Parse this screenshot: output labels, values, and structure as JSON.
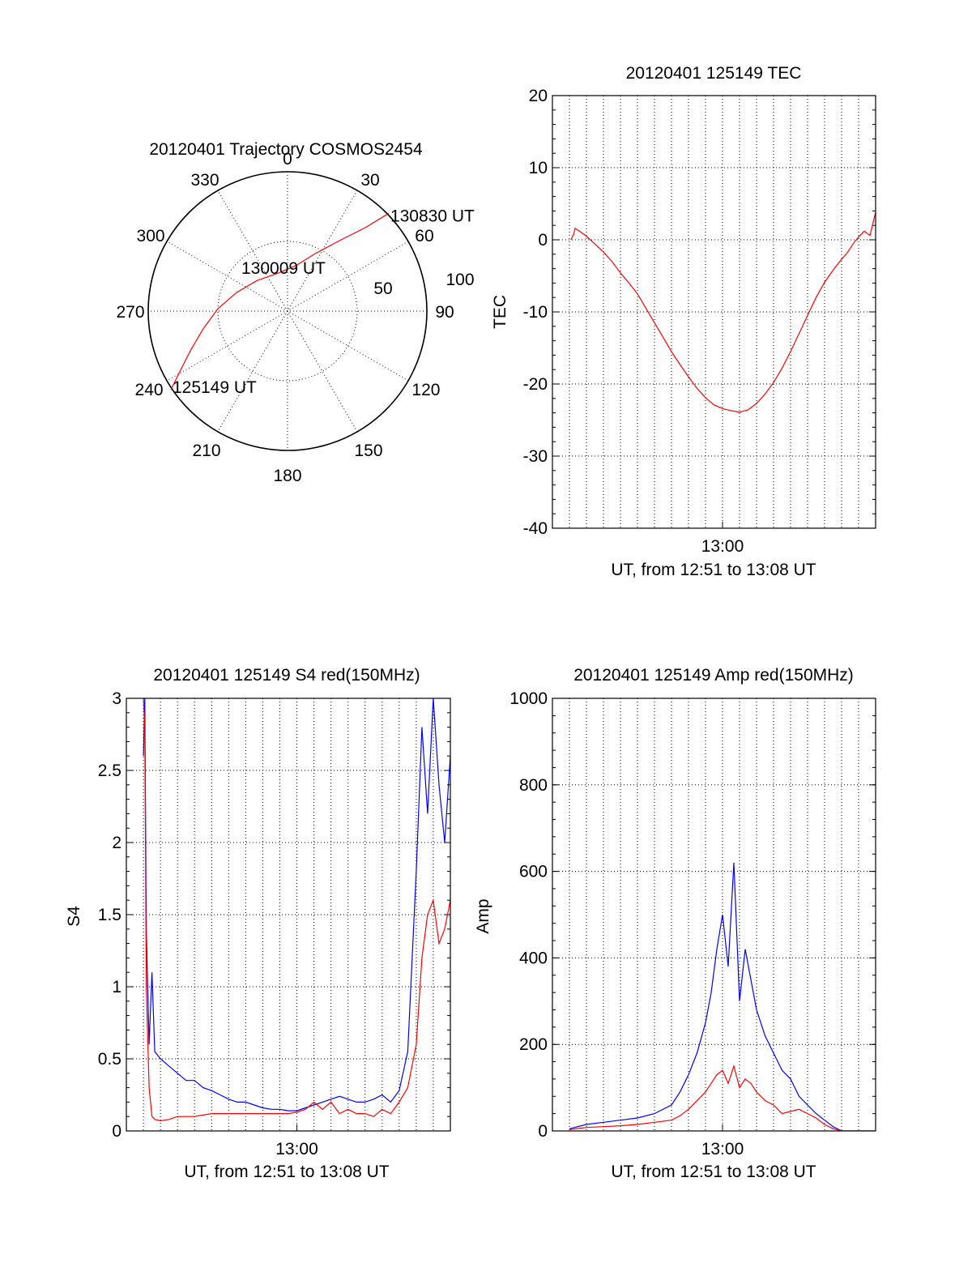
{
  "chart_data": [
    {
      "type": "polar",
      "title": "20120401 Trajectory COSMOS2454",
      "azimuth_labels": [
        "0",
        "30",
        "60",
        "90",
        "120",
        "150",
        "180",
        "210",
        "240",
        "270",
        "300",
        "330"
      ],
      "radial_labels": [
        "50",
        "100"
      ],
      "radial_ticks": [
        50,
        100
      ],
      "grid": true,
      "trajectory_color": "#ff0000",
      "trajectory": [
        {
          "az": 236,
          "r": 101
        },
        {
          "az": 241,
          "r": 88
        },
        {
          "az": 248,
          "r": 75
        },
        {
          "az": 258,
          "r": 62
        },
        {
          "az": 272,
          "r": 50
        },
        {
          "az": 290,
          "r": 39
        },
        {
          "az": 315,
          "r": 31
        },
        {
          "az": 345,
          "r": 28
        },
        {
          "az": 10,
          "r": 33
        },
        {
          "az": 25,
          "r": 45
        },
        {
          "az": 36,
          "r": 62
        },
        {
          "az": 43,
          "r": 82
        },
        {
          "az": 46,
          "r": 101
        }
      ],
      "annotations": [
        {
          "text": "125149 UT",
          "az": 236,
          "r": 101
        },
        {
          "text": "130009 UT",
          "az": 330,
          "r": 28
        },
        {
          "text": "130830 UT",
          "az": 46,
          "r": 101
        }
      ]
    },
    {
      "type": "line",
      "title": "20120401 125149 TEC",
      "xlabel": "UT, from 12:51 to 13:08 UT",
      "ylabel": "TEC",
      "xlim": [
        "12:50:00",
        "13:09:00"
      ],
      "ylim": [
        -40,
        20
      ],
      "yticks": [
        -40,
        -30,
        -20,
        -10,
        0,
        10,
        20
      ],
      "xtick_labels": [
        {
          "t": "13:00:00",
          "label": "13:00"
        }
      ],
      "grid": true,
      "series": [
        {
          "color": "#ff0000",
          "x": [
            "12:51:05",
            "12:51:15",
            "12:51:20",
            "12:51:35",
            "12:52:00",
            "12:52:30",
            "12:53:00",
            "12:53:30",
            "12:54:00",
            "12:54:30",
            "12:55:00",
            "12:55:30",
            "12:56:00",
            "12:56:30",
            "12:57:00",
            "12:57:30",
            "12:58:00",
            "12:58:30",
            "12:59:00",
            "12:59:30",
            "13:00:00",
            "13:00:30",
            "13:01:00",
            "13:01:30",
            "13:02:00",
            "13:02:30",
            "13:03:00",
            "13:03:30",
            "13:04:00",
            "13:04:30",
            "13:05:00",
            "13:05:30",
            "13:06:00",
            "13:06:30",
            "13:07:00",
            "13:07:20",
            "13:07:40",
            "13:08:00",
            "13:08:20",
            "13:08:40",
            "13:09:00"
          ],
          "y": [
            0,
            0.8,
            1.6,
            1.2,
            0.5,
            -0.6,
            -1.7,
            -3.0,
            -4.6,
            -6.0,
            -7.5,
            -9.5,
            -11.5,
            -13.5,
            -15.5,
            -17.3,
            -19.0,
            -20.6,
            -21.9,
            -22.9,
            -23.4,
            -23.7,
            -23.9,
            -23.6,
            -22.7,
            -21.4,
            -19.8,
            -17.8,
            -15.5,
            -13.0,
            -10.5,
            -8.0,
            -5.9,
            -4.2,
            -2.7,
            -1.8,
            -0.6,
            0.4,
            1.2,
            0.6,
            3.8
          ]
        }
      ]
    },
    {
      "type": "line",
      "title": "20120401 125149 S4 red(150MHz)",
      "xlabel": "UT, from 12:51 to 13:08 UT",
      "ylabel": "S4",
      "xlim": [
        "12:50:00",
        "13:09:00"
      ],
      "ylim": [
        0,
        3
      ],
      "yticks": [
        0,
        0.5,
        1,
        1.5,
        2,
        2.5,
        3
      ],
      "ytick_labels": [
        "0",
        "0.5",
        "1",
        "1.5",
        "2",
        "2.5",
        "3"
      ],
      "xtick_labels": [
        {
          "t": "13:00:00",
          "label": "13:00"
        }
      ],
      "grid": true,
      "series": [
        {
          "color": "#0000ff",
          "x": [
            "12:51:00",
            "12:51:05",
            "12:51:10",
            "12:51:20",
            "12:51:30",
            "12:51:40",
            "12:52:00",
            "12:52:30",
            "12:53:00",
            "12:53:30",
            "12:54:00",
            "12:54:30",
            "12:55:00",
            "12:55:30",
            "12:56:00",
            "12:56:30",
            "12:57:00",
            "12:57:30",
            "12:58:00",
            "12:58:30",
            "12:59:00",
            "12:59:30",
            "13:00:00",
            "13:00:30",
            "13:01:00",
            "13:01:30",
            "13:02:00",
            "13:02:30",
            "13:03:00",
            "13:03:30",
            "13:04:00",
            "13:04:30",
            "13:05:00",
            "13:05:30",
            "13:06:00",
            "13:06:30",
            "13:07:00",
            "13:07:20",
            "13:07:40",
            "13:08:00",
            "13:08:20",
            "13:08:40",
            "13:09:00"
          ],
          "y": [
            2.6,
            3.0,
            1.4,
            0.6,
            1.1,
            0.55,
            0.5,
            0.45,
            0.4,
            0.35,
            0.35,
            0.3,
            0.28,
            0.25,
            0.22,
            0.2,
            0.2,
            0.18,
            0.16,
            0.15,
            0.15,
            0.14,
            0.14,
            0.16,
            0.18,
            0.2,
            0.22,
            0.24,
            0.22,
            0.2,
            0.2,
            0.22,
            0.25,
            0.2,
            0.28,
            0.55,
            1.8,
            2.8,
            2.2,
            3.0,
            2.4,
            2.0,
            2.6
          ]
        },
        {
          "color": "#ff0000",
          "x": [
            "12:51:00",
            "12:51:05",
            "12:51:10",
            "12:51:20",
            "12:51:30",
            "12:51:40",
            "12:52:00",
            "12:52:30",
            "12:53:00",
            "12:53:30",
            "12:54:00",
            "12:54:30",
            "12:55:00",
            "12:55:30",
            "12:56:00",
            "12:56:30",
            "12:57:00",
            "12:57:30",
            "12:58:00",
            "12:58:30",
            "12:59:00",
            "12:59:30",
            "13:00:00",
            "13:00:30",
            "13:01:00",
            "13:01:30",
            "13:02:00",
            "13:02:30",
            "13:03:00",
            "13:03:30",
            "13:04:00",
            "13:04:30",
            "13:05:00",
            "13:05:30",
            "13:06:00",
            "13:06:30",
            "13:07:00",
            "13:07:20",
            "13:07:40",
            "13:08:00",
            "13:08:20",
            "13:08:40",
            "13:09:00"
          ],
          "y": [
            3.0,
            2.8,
            1.0,
            0.3,
            0.1,
            0.08,
            0.07,
            0.08,
            0.1,
            0.1,
            0.1,
            0.11,
            0.12,
            0.12,
            0.12,
            0.12,
            0.12,
            0.12,
            0.12,
            0.12,
            0.12,
            0.12,
            0.13,
            0.15,
            0.2,
            0.15,
            0.2,
            0.12,
            0.15,
            0.12,
            0.12,
            0.1,
            0.15,
            0.12,
            0.2,
            0.3,
            0.6,
            1.2,
            1.5,
            1.6,
            1.3,
            1.4,
            1.6
          ]
        }
      ]
    },
    {
      "type": "line",
      "title": "20120401 125149 Amp red(150MHz)",
      "xlabel": "UT, from 12:51 to 13:08 UT",
      "ylabel": "Amp",
      "xlim": [
        "12:50:00",
        "13:09:00"
      ],
      "ylim": [
        0,
        1000
      ],
      "yticks": [
        0,
        200,
        400,
        600,
        800,
        1000
      ],
      "xtick_labels": [
        {
          "t": "13:00:00",
          "label": "13:00"
        }
      ],
      "grid": true,
      "series": [
        {
          "color": "#0000ff",
          "x": [
            "12:51:00",
            "12:52:00",
            "12:53:00",
            "12:54:00",
            "12:55:00",
            "12:56:00",
            "12:57:00",
            "12:57:30",
            "12:58:00",
            "12:58:30",
            "12:59:00",
            "12:59:20",
            "12:59:40",
            "13:00:00",
            "13:00:20",
            "13:00:40",
            "13:01:00",
            "13:01:20",
            "13:01:40",
            "13:02:00",
            "13:02:30",
            "13:03:00",
            "13:03:30",
            "13:04:00",
            "13:04:30",
            "13:05:00",
            "13:05:30",
            "13:06:00",
            "13:06:30",
            "13:07:00",
            "13:08:00",
            "13:09:00"
          ],
          "y": [
            5,
            15,
            20,
            25,
            30,
            40,
            60,
            90,
            130,
            180,
            250,
            320,
            420,
            500,
            380,
            620,
            300,
            420,
            350,
            280,
            220,
            180,
            140,
            120,
            80,
            60,
            40,
            25,
            10,
            0,
            0,
            0
          ]
        },
        {
          "color": "#ff0000",
          "x": [
            "12:51:00",
            "12:52:00",
            "12:53:00",
            "12:54:00",
            "12:55:00",
            "12:56:00",
            "12:57:00",
            "12:57:30",
            "12:58:00",
            "12:58:30",
            "12:59:00",
            "12:59:20",
            "12:59:40",
            "13:00:00",
            "13:00:20",
            "13:00:40",
            "13:01:00",
            "13:01:20",
            "13:01:40",
            "13:02:00",
            "13:02:30",
            "13:03:00",
            "13:03:30",
            "13:04:00",
            "13:04:30",
            "13:05:00",
            "13:05:30",
            "13:06:00",
            "13:06:30",
            "13:07:00",
            "13:08:00",
            "13:09:00"
          ],
          "y": [
            3,
            8,
            10,
            12,
            15,
            20,
            25,
            35,
            50,
            70,
            90,
            110,
            130,
            140,
            110,
            150,
            100,
            120,
            110,
            90,
            70,
            60,
            40,
            45,
            50,
            40,
            30,
            15,
            5,
            0,
            0,
            0
          ]
        }
      ]
    }
  ]
}
